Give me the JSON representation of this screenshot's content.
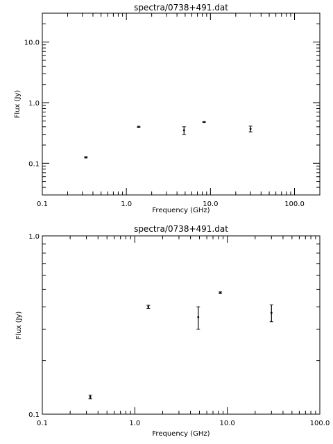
{
  "chart_data": [
    {
      "type": "scatter",
      "title": "spectra/0738+491.dat",
      "xlabel": "Frequency (GHz)",
      "ylabel": "Flux (Jy)",
      "x_scale": "log",
      "y_scale": "log",
      "xlim": [
        0.1,
        200.0
      ],
      "ylim": [
        0.03,
        30.0
      ],
      "x_ticks": [
        "0.1",
        "1.0",
        "10.0",
        "100.0"
      ],
      "y_ticks": [
        "0.1",
        "1.0",
        "10.0"
      ],
      "points": [
        {
          "x": 0.33,
          "y": 0.125,
          "err": 0.003
        },
        {
          "x": 1.4,
          "y": 0.4,
          "err": 0.008
        },
        {
          "x": 4.85,
          "y": 0.35,
          "err": 0.05
        },
        {
          "x": 8.4,
          "y": 0.48,
          "err": 0.005
        },
        {
          "x": 30.0,
          "y": 0.37,
          "err": 0.04
        }
      ]
    },
    {
      "type": "scatter",
      "title": "spectra/0738+491.dat",
      "xlabel": "Frequency (GHz)",
      "ylabel": "Flux (Jy)",
      "x_scale": "log",
      "y_scale": "log",
      "xlim": [
        0.1,
        100.0
      ],
      "ylim": [
        0.1,
        1.0
      ],
      "x_ticks": [
        "0.1",
        "1.0",
        "10.0",
        "100.0"
      ],
      "y_ticks": [
        "0.1",
        "1.0"
      ],
      "points": [
        {
          "x": 0.33,
          "y": 0.125,
          "err": 0.003
        },
        {
          "x": 1.4,
          "y": 0.4,
          "err": 0.008
        },
        {
          "x": 4.85,
          "y": 0.35,
          "err": 0.05
        },
        {
          "x": 8.4,
          "y": 0.48,
          "err": 0.005
        },
        {
          "x": 30.0,
          "y": 0.37,
          "err": 0.04
        }
      ]
    }
  ]
}
